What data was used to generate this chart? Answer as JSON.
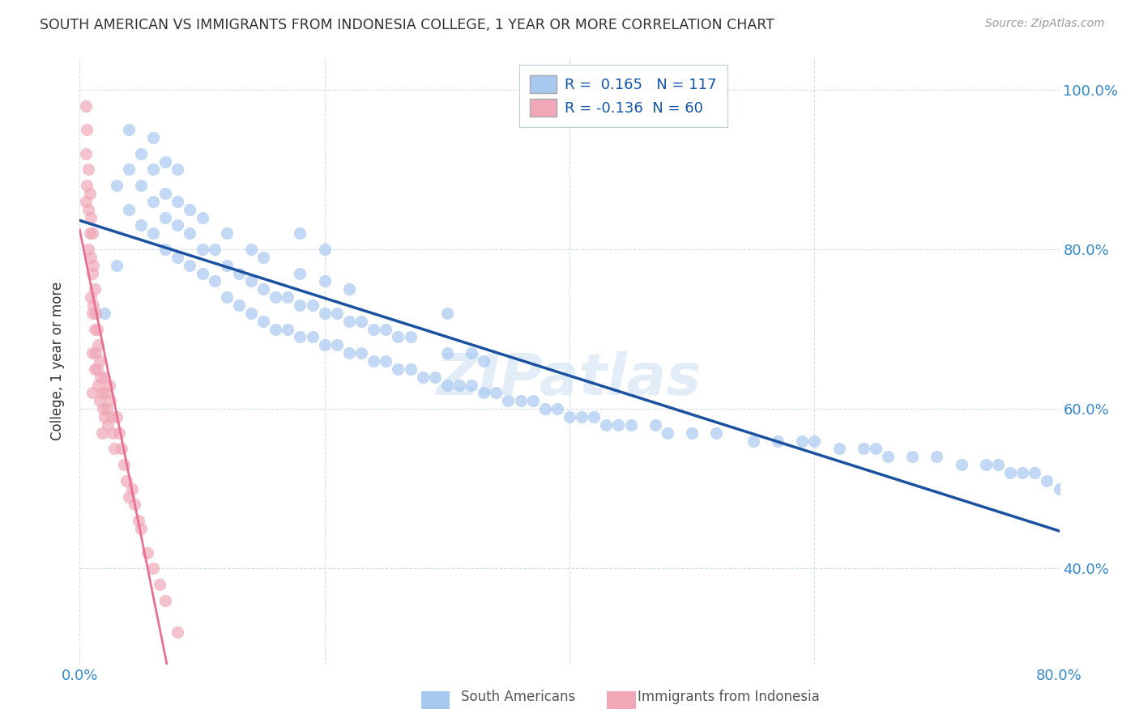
{
  "title": "SOUTH AMERICAN VS IMMIGRANTS FROM INDONESIA COLLEGE, 1 YEAR OR MORE CORRELATION CHART",
  "source": "Source: ZipAtlas.com",
  "ylabel": "College, 1 year or more",
  "xlim": [
    0.0,
    0.8
  ],
  "ylim": [
    0.28,
    1.04
  ],
  "blue_color": "#a8c8f0",
  "pink_color": "#f0a8b8",
  "blue_line_color": "#1a52a0",
  "pink_line_color": "#e87090",
  "pink_dash_color": "#f0b8c8",
  "watermark": "ZIPatlas",
  "legend_r_blue": "0.165",
  "legend_n_blue": "117",
  "legend_r_pink": "-0.136",
  "legend_n_pink": "60",
  "blue_scatter_x": [
    0.02,
    0.03,
    0.03,
    0.04,
    0.04,
    0.04,
    0.05,
    0.05,
    0.05,
    0.06,
    0.06,
    0.06,
    0.06,
    0.07,
    0.07,
    0.07,
    0.07,
    0.08,
    0.08,
    0.08,
    0.08,
    0.09,
    0.09,
    0.09,
    0.1,
    0.1,
    0.1,
    0.11,
    0.11,
    0.12,
    0.12,
    0.12,
    0.13,
    0.13,
    0.14,
    0.14,
    0.14,
    0.15,
    0.15,
    0.15,
    0.16,
    0.16,
    0.17,
    0.17,
    0.18,
    0.18,
    0.18,
    0.18,
    0.19,
    0.19,
    0.2,
    0.2,
    0.2,
    0.2,
    0.21,
    0.21,
    0.22,
    0.22,
    0.22,
    0.23,
    0.23,
    0.24,
    0.24,
    0.25,
    0.25,
    0.26,
    0.26,
    0.27,
    0.27,
    0.28,
    0.29,
    0.3,
    0.3,
    0.3,
    0.31,
    0.32,
    0.32,
    0.33,
    0.33,
    0.34,
    0.35,
    0.36,
    0.37,
    0.38,
    0.39,
    0.4,
    0.41,
    0.42,
    0.43,
    0.44,
    0.45,
    0.47,
    0.48,
    0.5,
    0.52,
    0.55,
    0.57,
    0.59,
    0.6,
    0.62,
    0.64,
    0.65,
    0.66,
    0.68,
    0.7,
    0.72,
    0.74,
    0.75,
    0.76,
    0.77,
    0.78,
    0.79,
    0.8
  ],
  "blue_scatter_y": [
    0.72,
    0.88,
    0.78,
    0.85,
    0.9,
    0.95,
    0.83,
    0.88,
    0.92,
    0.82,
    0.86,
    0.9,
    0.94,
    0.8,
    0.84,
    0.87,
    0.91,
    0.79,
    0.83,
    0.86,
    0.9,
    0.78,
    0.82,
    0.85,
    0.77,
    0.8,
    0.84,
    0.76,
    0.8,
    0.74,
    0.78,
    0.82,
    0.73,
    0.77,
    0.72,
    0.76,
    0.8,
    0.71,
    0.75,
    0.79,
    0.7,
    0.74,
    0.7,
    0.74,
    0.69,
    0.73,
    0.77,
    0.82,
    0.69,
    0.73,
    0.68,
    0.72,
    0.76,
    0.8,
    0.68,
    0.72,
    0.67,
    0.71,
    0.75,
    0.67,
    0.71,
    0.66,
    0.7,
    0.66,
    0.7,
    0.65,
    0.69,
    0.65,
    0.69,
    0.64,
    0.64,
    0.63,
    0.67,
    0.72,
    0.63,
    0.63,
    0.67,
    0.62,
    0.66,
    0.62,
    0.61,
    0.61,
    0.61,
    0.6,
    0.6,
    0.59,
    0.59,
    0.59,
    0.58,
    0.58,
    0.58,
    0.58,
    0.57,
    0.57,
    0.57,
    0.56,
    0.56,
    0.56,
    0.56,
    0.55,
    0.55,
    0.55,
    0.54,
    0.54,
    0.54,
    0.53,
    0.53,
    0.53,
    0.52,
    0.52,
    0.52,
    0.51,
    0.5
  ],
  "pink_scatter_x": [
    0.005,
    0.005,
    0.005,
    0.006,
    0.006,
    0.007,
    0.007,
    0.007,
    0.008,
    0.008,
    0.009,
    0.009,
    0.009,
    0.01,
    0.01,
    0.01,
    0.01,
    0.01,
    0.011,
    0.011,
    0.012,
    0.012,
    0.012,
    0.013,
    0.013,
    0.014,
    0.014,
    0.015,
    0.015,
    0.016,
    0.016,
    0.017,
    0.018,
    0.018,
    0.019,
    0.02,
    0.02,
    0.021,
    0.022,
    0.023,
    0.024,
    0.025,
    0.026,
    0.027,
    0.028,
    0.03,
    0.032,
    0.034,
    0.036,
    0.038,
    0.04,
    0.043,
    0.045,
    0.048,
    0.05,
    0.055,
    0.06,
    0.065,
    0.07,
    0.08
  ],
  "pink_scatter_y": [
    0.98,
    0.92,
    0.86,
    0.95,
    0.88,
    0.9,
    0.85,
    0.8,
    0.87,
    0.82,
    0.84,
    0.79,
    0.74,
    0.82,
    0.77,
    0.72,
    0.67,
    0.62,
    0.78,
    0.73,
    0.75,
    0.7,
    0.65,
    0.72,
    0.67,
    0.7,
    0.65,
    0.68,
    0.63,
    0.66,
    0.61,
    0.64,
    0.62,
    0.57,
    0.6,
    0.64,
    0.59,
    0.62,
    0.6,
    0.58,
    0.63,
    0.61,
    0.59,
    0.57,
    0.55,
    0.59,
    0.57,
    0.55,
    0.53,
    0.51,
    0.49,
    0.5,
    0.48,
    0.46,
    0.45,
    0.42,
    0.4,
    0.38,
    0.36,
    0.32
  ]
}
